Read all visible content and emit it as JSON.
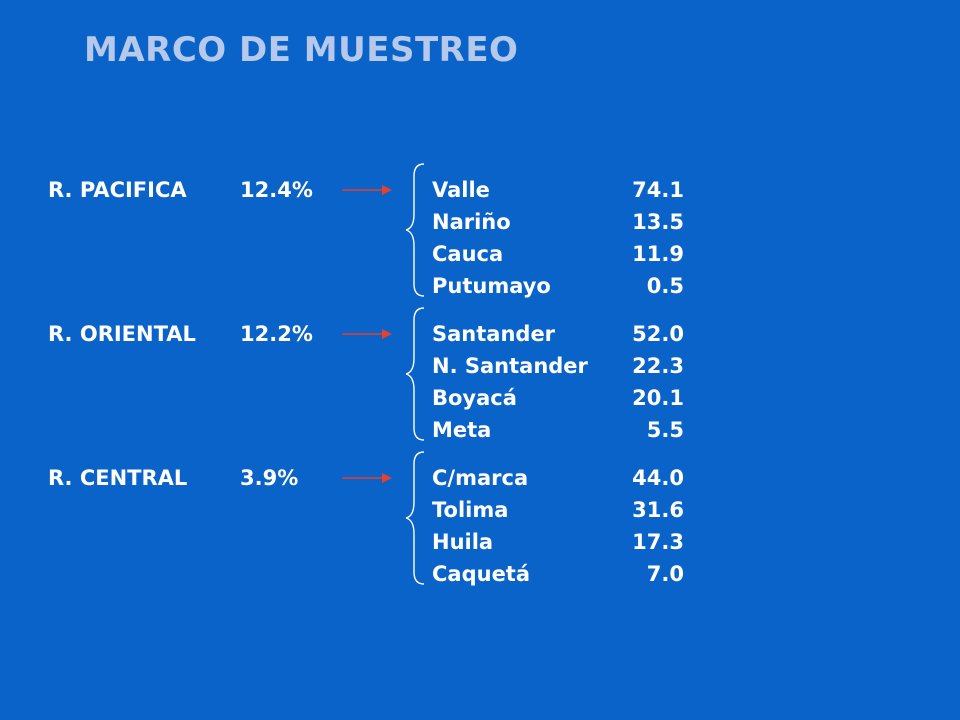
{
  "title": "MARCO DE MUESTREO",
  "colors": {
    "background": "#0a63c9",
    "title": "#b7c9ea",
    "text": "#ffffff",
    "arrow": "#e8402a"
  },
  "regions": [
    {
      "name": "R. PACIFICA",
      "pct": "12.4%",
      "departments": [
        {
          "name": "Valle",
          "value": "74.1"
        },
        {
          "name": "Nariño",
          "value": "13.5"
        },
        {
          "name": "Cauca",
          "value": "11.9"
        },
        {
          "name": "Putumayo",
          "value": "0.5"
        }
      ]
    },
    {
      "name": "R. ORIENTAL",
      "pct": "12.2%",
      "departments": [
        {
          "name": "Santander",
          "value": "52.0"
        },
        {
          "name": "N. Santander",
          "value": "22.3"
        },
        {
          "name": "Boyacá",
          "value": "20.1"
        },
        {
          "name": "Meta",
          "value": "5.5"
        }
      ]
    },
    {
      "name": "R. CENTRAL",
      "pct": "3.9%",
      "departments": [
        {
          "name": "C/marca",
          "value": "44.0"
        },
        {
          "name": "Tolima",
          "value": "31.6"
        },
        {
          "name": "Huila",
          "value": "17.3"
        },
        {
          "name": "Caquetá",
          "value": "7.0"
        }
      ]
    }
  ]
}
